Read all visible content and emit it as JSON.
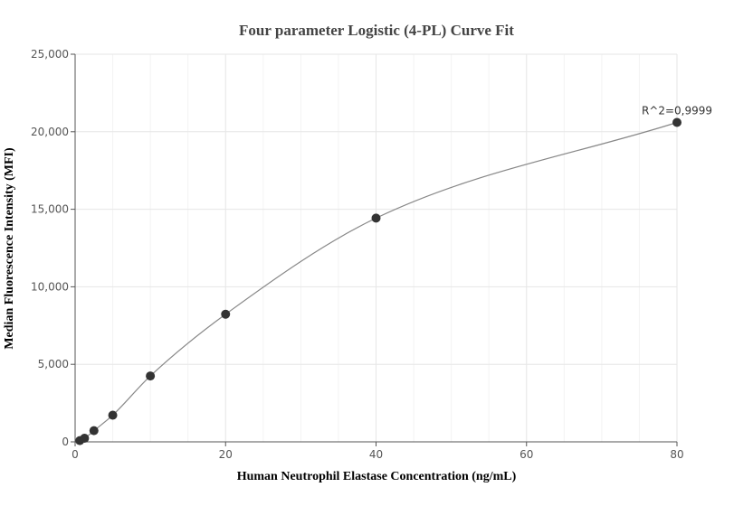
{
  "chart_data": {
    "type": "scatter",
    "title": "Four parameter Logistic (4-PL) Curve Fit",
    "xlabel": "Human Neutrophil Elastase Concentration (ng/mL)",
    "ylabel": "Median Fluorescence Intensity (MFI)",
    "xlim": [
      0,
      80
    ],
    "ylim": [
      0,
      25000
    ],
    "x_ticks": [
      0,
      20,
      40,
      60,
      80
    ],
    "y_ticks": [
      0,
      5000,
      10000,
      15000,
      20000,
      25000
    ],
    "x_tick_labels": [
      "0",
      "20",
      "40",
      "60",
      "80"
    ],
    "y_tick_labels": [
      "0",
      "5,000",
      "10,000",
      "15,000",
      "20,000",
      "25,000"
    ],
    "grid": true,
    "series": [
      {
        "x": [
          0.625,
          1.25,
          2.5,
          5,
          10,
          20,
          40,
          80
        ],
        "y": [
          80,
          230,
          720,
          1720,
          4250,
          8230,
          14430,
          20600
        ]
      }
    ],
    "annotation": "R^2=0,9999",
    "colors": {
      "points": "#333333",
      "curve": "#888888",
      "grid": "#e6e6e6"
    }
  }
}
